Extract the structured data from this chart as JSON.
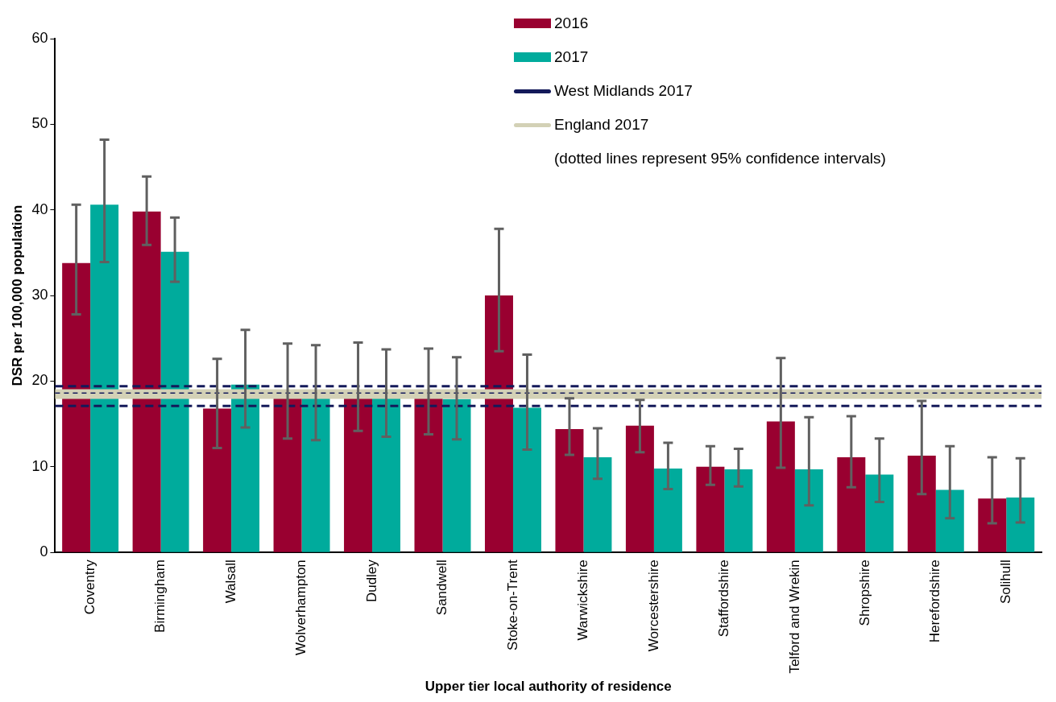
{
  "chart_data": {
    "type": "bar",
    "xlabel": "Upper tier local authority of residence",
    "ylabel": "DSR per 100,000 population",
    "categories": [
      "Coventry",
      "Birmingham",
      "Walsall",
      "Wolverhampton",
      "Dudley",
      "Sandwell",
      "Stoke-on-Trent",
      "Warwickshire",
      "Worcestershire",
      "Staffordshire",
      "Telford and Wrekin",
      "Shropshire",
      "Herefordshire",
      "Solihull"
    ],
    "series": [
      {
        "name": "2016",
        "color": "#990030",
        "values": [
          33.8,
          39.8,
          16.8,
          18.0,
          18.0,
          18.0,
          30.0,
          14.4,
          14.8,
          10.0,
          15.3,
          11.1,
          11.3,
          6.3
        ],
        "errors": [
          [
            27.8,
            40.6
          ],
          [
            35.9,
            43.9
          ],
          [
            12.2,
            22.6
          ],
          [
            13.3,
            24.4
          ],
          [
            14.2,
            24.5
          ],
          [
            13.8,
            23.8
          ],
          [
            23.5,
            37.8
          ],
          [
            11.4,
            18.0
          ],
          [
            11.7,
            17.8
          ],
          [
            7.9,
            12.4
          ],
          [
            9.9,
            22.7
          ],
          [
            7.6,
            15.9
          ],
          [
            6.8,
            17.7
          ],
          [
            3.4,
            11.1
          ]
        ]
      },
      {
        "name": "2017",
        "color": "#00ab9c",
        "values": [
          40.6,
          35.1,
          19.6,
          18.0,
          18.0,
          17.9,
          16.9,
          11.1,
          9.8,
          9.7,
          9.7,
          9.1,
          7.3,
          6.4
        ],
        "errors": [
          [
            33.9,
            48.2
          ],
          [
            31.6,
            39.1
          ],
          [
            14.6,
            26.0
          ],
          [
            13.1,
            24.2
          ],
          [
            13.5,
            23.7
          ],
          [
            13.2,
            22.8
          ],
          [
            12.0,
            23.1
          ],
          [
            8.6,
            14.5
          ],
          [
            7.4,
            12.8
          ],
          [
            7.7,
            12.1
          ],
          [
            5.5,
            15.8
          ],
          [
            5.9,
            13.3
          ],
          [
            4.0,
            12.4
          ],
          [
            3.5,
            11.0
          ]
        ]
      }
    ],
    "ref_lines": [
      {
        "axis": "y",
        "value": 18.5,
        "label": "England 2017",
        "color": "#d3d1b6",
        "line_style": "solid"
      },
      {
        "axis": "y",
        "value": 18.6,
        "label": "West Midlands 2017",
        "color": "#141a5a",
        "line_style": "dashed"
      },
      {
        "axis": "y",
        "value": 17.1,
        "color": "#141a5a",
        "line_style": "dashed"
      },
      {
        "axis": "y",
        "value": 19.4,
        "color": "#141a5a",
        "line_style": "dashed"
      }
    ],
    "annotations": [
      "(dotted lines represent 95% confidence intervals)"
    ],
    "ylim": [
      0,
      60
    ],
    "yticks": [
      0,
      10,
      20,
      30,
      40,
      50,
      60
    ],
    "grid": false,
    "legend": "top right"
  }
}
